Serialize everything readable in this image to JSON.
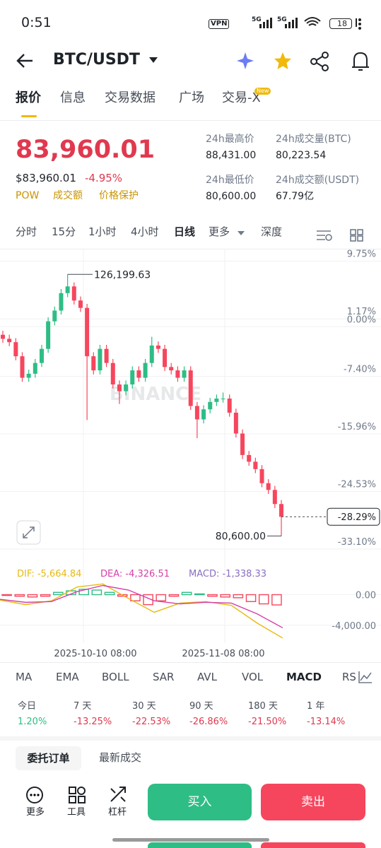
{
  "status_bar": {
    "time": "0:51",
    "vpn": "VPN",
    "net1": "5G",
    "net2": "5G",
    "battery": "18"
  },
  "header": {
    "title": "BTC/USDT"
  },
  "tabs": {
    "items": [
      "报价",
      "信息",
      "交易数据",
      "广场",
      "交易-X"
    ],
    "badge": "New"
  },
  "price": {
    "last": "83,960.01",
    "usd": "$83,960.01",
    "change": "-4.95%",
    "tags": [
      "POW",
      "成交额",
      "价格保护"
    ]
  },
  "stats": {
    "high_label": "24h最高价",
    "high": "88,431.00",
    "low_label": "24h最低价",
    "low": "80,600.00",
    "vol_label": "24h成交量(BTC)",
    "vol": "80,223.54",
    "amount_label": "24h成交额(USDT)",
    "amount": "67.79亿"
  },
  "timeframes": [
    "分时",
    "15分",
    "1小时",
    "4小时",
    "日线",
    "更多",
    "深度"
  ],
  "chart": {
    "type": "candlestick",
    "watermark": "BINANCE",
    "ylim": [
      -35.0,
      11.5
    ],
    "yticks": [
      {
        "value": 9.75,
        "label": "9.75%"
      },
      {
        "value": 1.17,
        "label": "1.17%"
      },
      {
        "value": 0.0,
        "label": "0.00%"
      },
      {
        "value": -7.4,
        "label": "-7.40%"
      },
      {
        "value": -15.96,
        "label": "-15.96%"
      },
      {
        "value": -24.53,
        "label": "-24.53%"
      },
      {
        "value": -33.1,
        "label": "-33.10%"
      }
    ],
    "last": {
      "value": -28.29,
      "label": "-28.29%"
    },
    "high_label": "126,199.63",
    "low_label": "80,600.00",
    "candles": [
      [
        -1.2,
        -1.8,
        -0.6,
        -2.4
      ],
      [
        -1.8,
        -2.3,
        -1.2,
        -2.9
      ],
      [
        -2.3,
        -4.4,
        -1.7,
        -5.0
      ],
      [
        -4.4,
        -7.6,
        -3.8,
        -8.2
      ],
      [
        -7.6,
        -7.0,
        -6.4,
        -8.2
      ],
      [
        -7.0,
        -5.4,
        -4.8,
        -7.6
      ],
      [
        -5.4,
        -3.3,
        -2.7,
        -6.0
      ],
      [
        -3.3,
        0.8,
        1.4,
        -3.9
      ],
      [
        0.8,
        2.4,
        3.0,
        0.2
      ],
      [
        2.4,
        5.0,
        5.6,
        1.8
      ],
      [
        5.0,
        6.0,
        7.79,
        4.4
      ],
      [
        6.0,
        3.9,
        6.6,
        3.3
      ],
      [
        3.9,
        2.8,
        4.5,
        2.2
      ],
      [
        2.8,
        -4.4,
        3.4,
        -13.9
      ],
      [
        -4.4,
        -6.5,
        -3.8,
        -7.1
      ],
      [
        -6.5,
        -3.3,
        -2.7,
        -7.1
      ],
      [
        -3.3,
        -5.4,
        -2.7,
        -6.0
      ],
      [
        -5.4,
        -8.6,
        -4.8,
        -9.2
      ],
      [
        -8.6,
        -9.6,
        -8.0,
        -11.5
      ],
      [
        -9.6,
        -8.6,
        -8.0,
        -10.2
      ],
      [
        -8.6,
        -6.5,
        -5.9,
        -9.2
      ],
      [
        -6.5,
        -7.6,
        -5.9,
        -8.2
      ],
      [
        -7.6,
        -5.4,
        -4.8,
        -8.2
      ],
      [
        -5.4,
        -2.8,
        -1.5,
        -6.0
      ],
      [
        -2.8,
        -3.3,
        -2.2,
        -3.9
      ],
      [
        -3.3,
        -6.0,
        -2.7,
        -6.6
      ],
      [
        -6.0,
        -6.5,
        -5.4,
        -7.1
      ],
      [
        -6.5,
        -7.6,
        -5.9,
        -8.2
      ],
      [
        -7.6,
        -6.5,
        -5.9,
        -8.2
      ],
      [
        -6.5,
        -11.8,
        -5.9,
        -12.4
      ],
      [
        -11.8,
        -13.8,
        -11.2,
        -16.6
      ],
      [
        -13.8,
        -12.3,
        -11.7,
        -14.4
      ],
      [
        -12.3,
        -11.2,
        -10.6,
        -12.9
      ],
      [
        -11.2,
        -10.7,
        -10.1,
        -11.8
      ],
      [
        -10.7,
        -10.7,
        -9.8,
        -11.3
      ],
      [
        -10.7,
        -12.8,
        -10.1,
        -13.4
      ],
      [
        -12.8,
        -15.9,
        -12.2,
        -16.5
      ],
      [
        -15.9,
        -19.1,
        -15.3,
        -19.7
      ],
      [
        -19.1,
        -20.1,
        -18.5,
        -20.7
      ],
      [
        -20.1,
        -21.2,
        -19.5,
        -21.8
      ],
      [
        -21.2,
        -23.3,
        -20.6,
        -23.9
      ],
      [
        -23.3,
        -24.3,
        -22.7,
        -24.9
      ],
      [
        -24.3,
        -26.4,
        -23.7,
        -27.0
      ],
      [
        -26.4,
        -28.29,
        -25.8,
        -31.16
      ]
    ],
    "up_color": "#2ebd85",
    "down_color": "#f6465d",
    "xlabels": [
      "2025-10-10 08:00",
      "2025-11-08 08:00"
    ]
  },
  "macd": {
    "dif_label": "DIF: -5,664.84",
    "dea_label": "DEA: -4,326.51",
    "macd_label": "MACD: -1,338.33",
    "ylim": [
      -6500,
      1800
    ],
    "yticks": [
      {
        "value": 0,
        "label": "0.00"
      },
      {
        "value": -4000,
        "label": "-4,000.00"
      }
    ],
    "dif": [
      -700,
      -1300,
      -800,
      1000,
      1400,
      -500,
      -2300,
      -1100,
      -900,
      -1400,
      -3700,
      -5664.84
    ],
    "dea": [
      -600,
      -1000,
      -900,
      400,
      1200,
      600,
      -800,
      -1200,
      -1000,
      -1100,
      -2500,
      -4326.51
    ],
    "hist": [
      -100,
      -200,
      -300,
      -200,
      300,
      500,
      700,
      600,
      300,
      -200,
      -800,
      -1300,
      -800,
      -200,
      300,
      100,
      -200,
      -300,
      -400,
      -900,
      -1200,
      -1338.33
    ],
    "dif_color": "#e8b90f",
    "dea_color": "#d63fa8"
  },
  "indicators": [
    "MA",
    "EMA",
    "BOLL",
    "SAR",
    "AVL",
    "VOL",
    "MACD",
    "RS"
  ],
  "performance": {
    "labels": [
      "今日",
      "7 天",
      "30 天",
      "90 天",
      "180 天",
      "1 年"
    ],
    "values": [
      "1.20%",
      "-13.25%",
      "-22.53%",
      "-26.86%",
      "-21.50%",
      "-13.14%"
    ]
  },
  "orders": {
    "tabs": [
      "委托订单",
      "最新成交"
    ]
  },
  "bottom": {
    "tools": [
      "更多",
      "工具",
      "杠杆"
    ],
    "buy": "买入",
    "sell": "卖出"
  }
}
